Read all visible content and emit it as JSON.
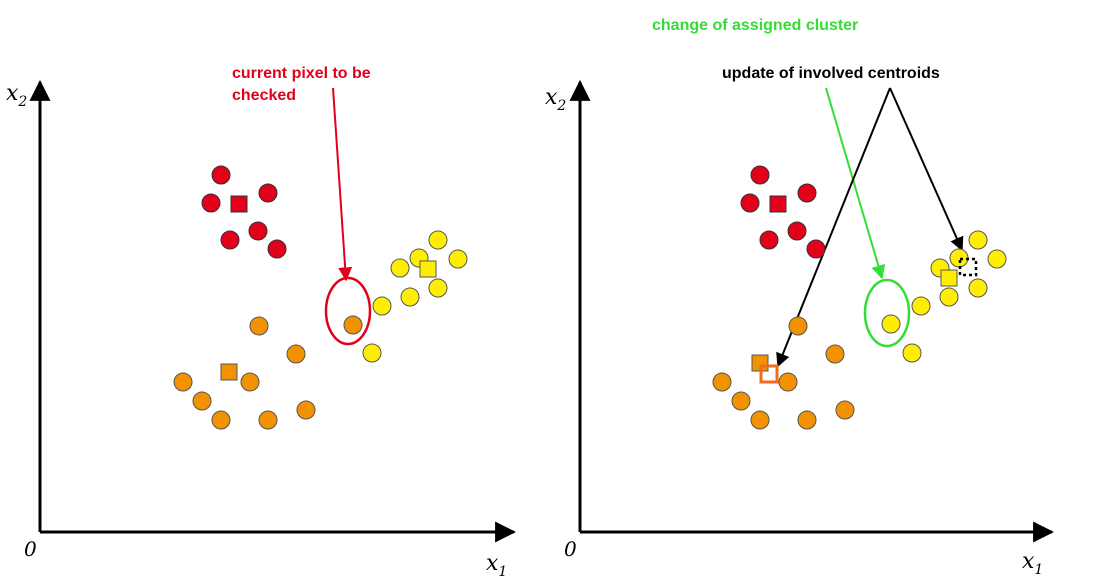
{
  "colors": {
    "red": "#e2001a",
    "orange": "#f39200",
    "yellow": "#ffee00",
    "green": "#33dd33",
    "black": "#000000",
    "orange_outline": "#f26b1d"
  },
  "left_plot": {
    "origin_label": "0",
    "x_axis": {
      "var": "x",
      "sub": "1"
    },
    "y_axis": {
      "var": "x",
      "sub": "2"
    },
    "annotation": {
      "line1": "current pixel to be",
      "line2": "checked"
    }
  },
  "right_plot": {
    "origin_label": "0",
    "x_axis": {
      "var": "x",
      "sub": "1"
    },
    "y_axis": {
      "var": "x",
      "sub": "2"
    },
    "annotation_green": "change of assigned cluster",
    "annotation_black": "update of involved centroids"
  }
}
